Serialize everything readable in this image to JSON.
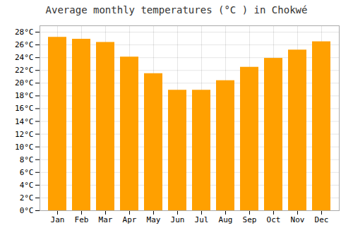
{
  "chart_data": {
    "type": "bar",
    "title": "Average monthly temperatures (°C ) in Chokwé",
    "categories": [
      "Jan",
      "Feb",
      "Mar",
      "Apr",
      "May",
      "Jun",
      "Jul",
      "Aug",
      "Sep",
      "Oct",
      "Nov",
      "Dec"
    ],
    "values": [
      27.2,
      26.9,
      26.4,
      24.1,
      21.5,
      18.9,
      18.9,
      20.4,
      22.5,
      23.9,
      25.2,
      26.5
    ],
    "color": "#FFA000",
    "ylim": [
      0,
      29
    ],
    "yticks": [
      {
        "value": 0,
        "label": "0°C"
      },
      {
        "value": 2,
        "label": "2°C"
      },
      {
        "value": 4,
        "label": "4°C"
      },
      {
        "value": 6,
        "label": "6°C"
      },
      {
        "value": 8,
        "label": "8°C"
      },
      {
        "value": 10,
        "label": "10°C"
      },
      {
        "value": 12,
        "label": "12°C"
      },
      {
        "value": 14,
        "label": "14°C"
      },
      {
        "value": 16,
        "label": "16°C"
      },
      {
        "value": 18,
        "label": "18°C"
      },
      {
        "value": 20,
        "label": "20°C"
      },
      {
        "value": 22,
        "label": "22°C"
      },
      {
        "value": 24,
        "label": "24°C"
      },
      {
        "value": 26,
        "label": "26°C"
      },
      {
        "value": 28,
        "label": "28°C"
      }
    ],
    "grid": true
  }
}
